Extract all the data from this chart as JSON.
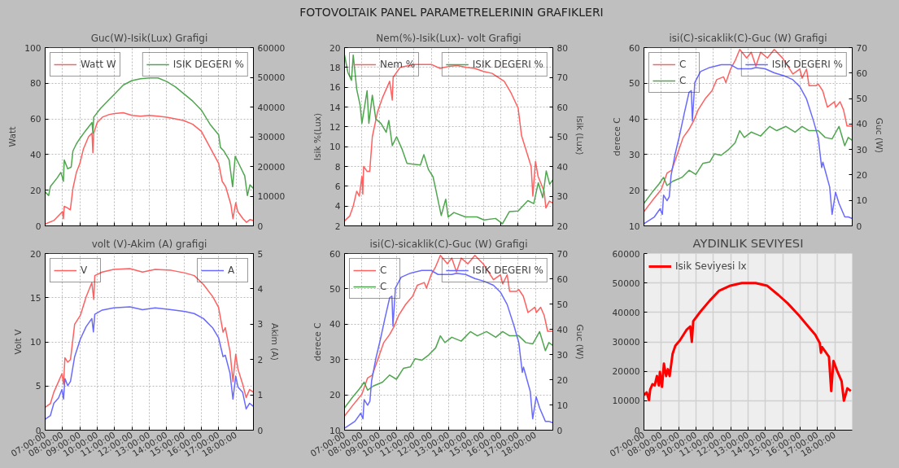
{
  "chart_data": [
    {
      "type": "line",
      "title": "Guc(W)-Isik(Lux) Grafigi",
      "ylabel": "Watt",
      "annotations": [
        "FOTOVOLTAIK PANEL PARAMETRELERININ GRAFIKLERI"
      ],
      "xlim": [
        7,
        19
      ],
      "xticks": [
        7,
        8,
        9,
        10,
        11,
        12,
        13,
        14,
        15,
        16,
        17,
        18
      ],
      "ylim": [
        0,
        100
      ],
      "yticks": [
        0,
        20,
        40,
        60,
        80,
        100
      ],
      "y2lim": [
        0,
        60000
      ],
      "y2ticks": [
        0,
        10000,
        20000,
        30000,
        40000,
        50000,
        60000
      ],
      "grid": true,
      "legend": "top",
      "tick_labels": "y",
      "line_style": "solid",
      "series": [
        {
          "name": "Watt W",
          "color": "#ff6060",
          "x": [
            7.0,
            7.5,
            8.0,
            8.05,
            8.1,
            8.3,
            8.45,
            8.6,
            8.8,
            9.0,
            9.2,
            9.5,
            9.7,
            9.75,
            9.8,
            10.0,
            10.3,
            10.7,
            11.0,
            11.5,
            12.0,
            12.5,
            13.0,
            13.5,
            14.0,
            14.5,
            15.0,
            15.5,
            16.0,
            16.5,
            17.0,
            17.2,
            17.4,
            17.7,
            17.82,
            17.98,
            18.1,
            18.4,
            18.6,
            18.8,
            19.0
          ],
          "values": [
            1,
            3,
            8,
            4,
            11,
            10,
            9,
            21,
            30,
            35,
            43,
            50,
            52,
            41,
            52,
            58,
            61,
            62.5,
            63,
            63.5,
            62,
            61.5,
            62,
            61.5,
            61,
            60,
            59,
            57,
            53,
            44,
            35,
            25,
            22,
            12,
            4,
            13,
            8,
            4,
            2,
            3.5,
            3
          ]
        },
        {
          "name": "ISIK DEGERI %",
          "color": "#4fa64f",
          "axis": "y2",
          "x": [
            7.0,
            7.2,
            7.3,
            7.7,
            7.9,
            8.0,
            8.05,
            8.1,
            8.3,
            8.5,
            8.6,
            8.8,
            9.0,
            9.3,
            9.7,
            9.75,
            9.8,
            10.2,
            10.7,
            11.0,
            11.5,
            12.0,
            12.5,
            13.0,
            13.5,
            14.0,
            14.5,
            15.0,
            15.5,
            16.0,
            16.5,
            17.0,
            17.1,
            17.3,
            17.6,
            17.8,
            17.95,
            18.2,
            18.5,
            18.65,
            18.8,
            19.0
          ],
          "values": [
            11400,
            10200,
            13200,
            16200,
            18000,
            16200,
            15000,
            22200,
            19200,
            19800,
            25200,
            27600,
            29400,
            31800,
            34800,
            31200,
            36600,
            39600,
            42600,
            44400,
            47400,
            48900,
            49500,
            49800,
            49800,
            48600,
            46800,
            44400,
            42000,
            39000,
            34200,
            30600,
            26400,
            25200,
            22200,
            13200,
            23400,
            20400,
            16800,
            10200,
            13800,
            12600
          ]
        }
      ]
    },
    {
      "type": "line",
      "title": "Nem(%)-Isik(Lux)- volt Grafigi",
      "ylabel": "Isik %(Lux)",
      "y2label": "Isik  (Lux)",
      "xlim": [
        7,
        19
      ],
      "xticks": [
        7,
        8,
        9,
        10,
        11,
        12,
        13,
        14,
        15,
        16,
        17,
        18
      ],
      "ylim": [
        2,
        20
      ],
      "yticks": [
        2,
        4,
        6,
        8,
        10,
        12,
        14,
        16,
        18,
        20
      ],
      "y2lim": [
        20,
        80
      ],
      "y2ticks": [
        20,
        30,
        40,
        50,
        60,
        70,
        80
      ],
      "grid": true,
      "legend": "top",
      "tick_labels": "y",
      "line_style": "solid",
      "series": [
        {
          "name": "Nem %",
          "color": "#ff6060",
          "x": [
            7.0,
            7.3,
            7.5,
            7.7,
            7.85,
            8.0,
            8.05,
            8.1,
            8.3,
            8.45,
            8.6,
            8.9,
            9.2,
            9.6,
            9.75,
            9.8,
            10.2,
            11.0,
            12.0,
            12.5,
            13.0,
            13.5,
            14.0,
            14.5,
            15.0,
            15.5,
            16.2,
            16.6,
            17.0,
            17.2,
            17.75,
            17.85,
            18.0,
            18.15,
            18.5,
            18.6,
            18.8,
            19.0
          ],
          "values": [
            2.5,
            3,
            4,
            5.5,
            5,
            7,
            5.2,
            8,
            7.5,
            7.5,
            11,
            13.5,
            15,
            16.6,
            14.7,
            17,
            18,
            18.3,
            18.3,
            17.9,
            18.1,
            18.2,
            18,
            17.9,
            17.6,
            17.4,
            16.6,
            15.4,
            13.9,
            11.1,
            8,
            5,
            8.5,
            7,
            5.5,
            3.8,
            4.5,
            4.3
          ]
        },
        {
          "name": "ISIK DEGERI %",
          "color": "#4fa64f",
          "axis": "y2",
          "x": [
            7.0,
            7.2,
            7.4,
            7.5,
            7.7,
            7.9,
            8.0,
            8.3,
            8.4,
            8.6,
            8.8,
            9.1,
            9.4,
            9.55,
            9.75,
            10.0,
            10.3,
            10.6,
            11.37,
            11.57,
            11.83,
            12.1,
            12.23,
            12.57,
            12.83,
            12.97,
            13.3,
            13.96,
            14.63,
            15.03,
            15.7,
            16.1,
            16.5,
            17.0,
            17.56,
            17.9,
            18.16,
            18.42,
            18.62,
            18.82,
            19.0
          ],
          "values": [
            77.5,
            71.5,
            69,
            77.5,
            66,
            60.5,
            54.5,
            65.5,
            54.5,
            64,
            56,
            54.5,
            51.5,
            55.5,
            47,
            50,
            46,
            41,
            40.5,
            44,
            39,
            36.5,
            33,
            23.5,
            29,
            23,
            24.5,
            23,
            23,
            22,
            22.5,
            20.7,
            24.8,
            25,
            28.5,
            27.5,
            34.5,
            29.5,
            38.5,
            34,
            35.5
          ]
        }
      ]
    },
    {
      "type": "line",
      "title": "isi(C)-sicaklik(C)-Guc (W) Grafigi",
      "ylabel": "derece C",
      "y2label": "Guc  (W)",
      "xlim": [
        7,
        19
      ],
      "xticks": [
        7,
        8,
        9,
        10,
        11,
        12,
        13,
        14,
        15,
        16,
        17,
        18
      ],
      "ylim": [
        10,
        60
      ],
      "yticks": [
        10,
        20,
        30,
        40,
        50,
        60
      ],
      "y2lim": [
        0,
        70
      ],
      "y2ticks": [
        0,
        10,
        20,
        30,
        40,
        50,
        60,
        70
      ],
      "grid": true,
      "legend": "top",
      "tick_labels": "y",
      "line_style": "solid",
      "series": [
        {
          "name": "C",
          "color": "#ff6060",
          "x": [
            7.0,
            7.47,
            8.0,
            8.33,
            8.6,
            8.93,
            9.26,
            9.6,
            9.86,
            10.12,
            10.52,
            10.92,
            11.19,
            11.59,
            11.72,
            11.99,
            12.25,
            12.52,
            12.92,
            13.18,
            13.45,
            13.72,
            14.11,
            14.51,
            15.0,
            15.58,
            15.98,
            16.11,
            16.37,
            16.51,
            16.91,
            17.04,
            17.3,
            17.57,
            17.97,
            18.05,
            18.3,
            18.5,
            18.7,
            19.0
          ],
          "values": [
            14,
            17,
            20.2,
            24.8,
            25.6,
            30.2,
            34.8,
            37.1,
            39.4,
            42.5,
            45.6,
            47.9,
            51,
            51.8,
            50.2,
            54,
            56.3,
            59.5,
            57.1,
            58.7,
            54.8,
            58.7,
            57.1,
            59.5,
            57,
            52.6,
            54,
            51.4,
            54,
            49.3,
            49.3,
            49.8,
            47.9,
            43.3,
            44.8,
            43.3,
            44.8,
            42.5,
            38,
            38
          ]
        },
        {
          "name": "C",
          "color": "#4fa64f",
          "x": [
            7.0,
            7.47,
            7.86,
            8.13,
            8.33,
            8.66,
            9.19,
            9.6,
            9.99,
            10.39,
            10.79,
            11.06,
            11.45,
            11.85,
            12.25,
            12.52,
            12.78,
            13.18,
            13.72,
            14.25,
            14.65,
            15.18,
            15.71,
            16.11,
            16.51,
            17.04,
            17.44,
            17.84,
            18.24,
            18.57,
            18.77,
            19.0
          ],
          "values": [
            16.3,
            19.4,
            21.7,
            23.6,
            21.3,
            22.5,
            23.6,
            25.6,
            24.4,
            27.5,
            27.9,
            30.2,
            29.8,
            31.3,
            33.3,
            36.7,
            34.8,
            36.3,
            35.2,
            37.9,
            36.7,
            37.9,
            36.3,
            37.9,
            36.7,
            36.7,
            34.8,
            34.4,
            37.9,
            32.5,
            34.8,
            34
          ]
        },
        {
          "name": "ISIK DEGERI %",
          "color": "#6a6aff",
          "axis": "y2",
          "x": [
            7.0,
            7.6,
            7.93,
            8.06,
            8.13,
            8.33,
            8.46,
            8.56,
            8.8,
            9.06,
            9.33,
            9.6,
            9.73,
            9.79,
            9.93,
            10.26,
            10.79,
            11.45,
            11.99,
            12.39,
            13.18,
            13.45,
            13.98,
            14.51,
            15.05,
            15.58,
            15.98,
            16.37,
            16.77,
            17.04,
            17.24,
            17.31,
            17.7,
            17.84,
            18.04,
            18.24,
            18.57,
            18.77,
            19.0
          ],
          "values": [
            0.8,
            3.5,
            6.7,
            4.5,
            12.1,
            9.9,
            11.5,
            19.6,
            28.3,
            35.8,
            44.4,
            52.5,
            53.1,
            41.2,
            56.3,
            60.6,
            62.2,
            63.3,
            63.3,
            61.7,
            61.7,
            62.2,
            61.7,
            60.1,
            59,
            57.4,
            54.7,
            49.8,
            41.2,
            34.7,
            22.9,
            25,
            15.3,
            4.5,
            13.2,
            8.8,
            3.5,
            3.5,
            2.9
          ]
        }
      ]
    },
    {
      "type": "line",
      "title": "volt (V)-Akim (A) grafigi",
      "ylabel": "Volt V",
      "y2label": "Akim (A)",
      "xlim": [
        7,
        19
      ],
      "xticks": [
        {
          "value": 7,
          "label": "07:00:00"
        },
        {
          "value": 8,
          "label": "08:00:00"
        },
        {
          "value": 9,
          "label": "09:00:00"
        },
        {
          "value": 10,
          "label": "10:00:00"
        },
        {
          "value": 11,
          "label": "11:00:00"
        },
        {
          "value": 12,
          "label": "12:00:00"
        },
        {
          "value": 13,
          "label": "13:00:00"
        },
        {
          "value": 14,
          "label": "14:00:00"
        },
        {
          "value": 15,
          "label": "15:00:00"
        },
        {
          "value": 16,
          "label": "16:00:00"
        },
        {
          "value": 17,
          "label": "17:00:00"
        },
        {
          "value": 18,
          "label": "18:00:00"
        }
      ],
      "ylim": [
        0,
        20
      ],
      "yticks": [
        0,
        5,
        10,
        15,
        20
      ],
      "y2lim": [
        0,
        5
      ],
      "y2ticks": [
        0,
        1,
        2,
        3,
        4,
        5
      ],
      "grid": true,
      "legend": "top",
      "line_style": "solid",
      "series": [
        {
          "name": "V",
          "color": "#ff6060",
          "x": [
            7.0,
            7.3,
            7.5,
            7.77,
            7.97,
            8.06,
            8.14,
            8.3,
            8.46,
            8.7,
            9.03,
            9.36,
            9.69,
            9.8,
            9.86,
            10.29,
            10.95,
            11.88,
            12.61,
            13.34,
            14.27,
            15.06,
            15.59,
            16.12,
            16.66,
            16.99,
            17.25,
            17.38,
            17.65,
            17.82,
            17.98,
            18.11,
            18.38,
            18.58,
            18.78,
            19.0
          ],
          "values": [
            2.6,
            3.0,
            4.3,
            5.5,
            6.4,
            5.2,
            8.2,
            7.7,
            8.0,
            12.0,
            13,
            15.1,
            16.7,
            14.8,
            17.5,
            17.9,
            18.2,
            18.3,
            17.9,
            18.2,
            18.1,
            17.8,
            17.5,
            16.5,
            15.1,
            13.9,
            11.1,
            11.6,
            8.9,
            5.5,
            8.6,
            6.9,
            5.2,
            3.7,
            4.6,
            4.3
          ]
        },
        {
          "name": "A",
          "color": "#6a6aff",
          "axis": "y2",
          "x": [
            7.0,
            7.3,
            7.5,
            7.77,
            7.97,
            8.06,
            8.14,
            8.3,
            8.46,
            8.7,
            9.03,
            9.36,
            9.69,
            9.78,
            9.86,
            10.29,
            10.95,
            11.88,
            12.61,
            13.34,
            14.27,
            15.06,
            15.59,
            16.12,
            16.66,
            16.99,
            17.25,
            17.38,
            17.65,
            17.82,
            17.98,
            18.11,
            18.38,
            18.58,
            18.78,
            19.0
          ],
          "values": [
            0.31,
            0.41,
            0.76,
            0.91,
            1.15,
            0.88,
            1.46,
            1.26,
            1.38,
            2.08,
            2.58,
            2.93,
            3.16,
            2.78,
            3.28,
            3.4,
            3.46,
            3.49,
            3.41,
            3.46,
            3.41,
            3.36,
            3.3,
            3.16,
            2.89,
            2.62,
            2.08,
            2.12,
            1.61,
            0.88,
            1.53,
            1.22,
            1.07,
            0.6,
            0.76,
            0.67
          ]
        }
      ]
    },
    {
      "type": "line",
      "title": "isi(C)-sicaklik(C)-Guc (W) Grafigi",
      "ylabel": "derece C",
      "y2label": "Guc (W)",
      "xlim": [
        7,
        19
      ],
      "xticks": [
        {
          "value": 7,
          "label": "07:00:00"
        },
        {
          "value": 8,
          "label": "08:00:00"
        },
        {
          "value": 9,
          "label": "09:00:00"
        },
        {
          "value": 10,
          "label": "10:00:00"
        },
        {
          "value": 11,
          "label": "11:00:00"
        },
        {
          "value": 12,
          "label": "12:00:00"
        },
        {
          "value": 13,
          "label": "13:00:00"
        },
        {
          "value": 14,
          "label": "14:00:00"
        },
        {
          "value": 15,
          "label": "15:00:00"
        },
        {
          "value": 16,
          "label": "16:00:00"
        },
        {
          "value": 17,
          "label": "17:00:00"
        },
        {
          "value": 18,
          "label": "18:00:00"
        }
      ],
      "ylim": [
        10,
        60
      ],
      "yticks": [
        10,
        20,
        30,
        40,
        50,
        60
      ],
      "y2lim": [
        0,
        70
      ],
      "y2ticks": [
        0,
        10,
        20,
        30,
        40,
        50,
        60,
        70
      ],
      "grid": true,
      "legend": "top",
      "line_style": "solid",
      "series": [
        {
          "name": "C",
          "color": "#ff6060",
          "x": [
            7.0,
            7.47,
            8.0,
            8.33,
            8.6,
            8.93,
            9.26,
            9.6,
            9.86,
            10.12,
            10.52,
            10.92,
            11.19,
            11.59,
            11.72,
            11.99,
            12.25,
            12.52,
            12.92,
            13.18,
            13.45,
            13.72,
            14.11,
            14.51,
            15.0,
            15.58,
            15.98,
            16.11,
            16.37,
            16.51,
            16.91,
            17.04,
            17.3,
            17.57,
            17.97,
            18.05,
            18.3,
            18.5,
            18.7,
            19.0
          ],
          "values": [
            14,
            17,
            20.2,
            24.8,
            25.6,
            30.2,
            34.8,
            37.1,
            39.4,
            42.5,
            45.6,
            47.9,
            51,
            51.8,
            50.2,
            54,
            56.3,
            59.5,
            57.1,
            58.7,
            54.8,
            58.7,
            57.1,
            59.5,
            57,
            52.6,
            54,
            51.4,
            54,
            49.3,
            49.3,
            49.8,
            47.9,
            43.3,
            44.8,
            43.3,
            44.8,
            42.5,
            38,
            38
          ]
        },
        {
          "name": "C",
          "color": "#4fa64f",
          "x": [
            7.0,
            7.47,
            7.86,
            8.13,
            8.33,
            8.66,
            9.19,
            9.6,
            9.99,
            10.39,
            10.79,
            11.06,
            11.45,
            11.85,
            12.25,
            12.52,
            12.78,
            13.18,
            13.72,
            14.25,
            14.65,
            15.18,
            15.71,
            16.11,
            16.51,
            17.04,
            17.44,
            17.84,
            18.24,
            18.57,
            18.77,
            19.0
          ],
          "values": [
            16.3,
            19.4,
            21.7,
            23.6,
            21.3,
            22.5,
            23.6,
            25.6,
            24.4,
            27.5,
            27.9,
            30.2,
            29.8,
            31.3,
            33.3,
            36.7,
            34.8,
            36.3,
            35.2,
            37.9,
            36.7,
            37.9,
            36.3,
            37.9,
            36.7,
            36.7,
            34.8,
            34.4,
            37.9,
            32.5,
            34.8,
            34
          ]
        },
        {
          "name": "ISIK DEGERI %",
          "color": "#6a6aff",
          "axis": "y2",
          "x": [
            7.0,
            7.6,
            7.93,
            8.06,
            8.13,
            8.33,
            8.46,
            8.56,
            8.8,
            9.06,
            9.33,
            9.6,
            9.73,
            9.79,
            9.93,
            10.26,
            10.79,
            11.45,
            11.99,
            12.39,
            13.18,
            13.45,
            13.98,
            14.51,
            15.05,
            15.58,
            15.98,
            16.37,
            16.77,
            17.04,
            17.24,
            17.31,
            17.7,
            17.84,
            18.04,
            18.24,
            18.57,
            18.77,
            19.0
          ],
          "values": [
            0.8,
            3.5,
            6.7,
            4.5,
            12.1,
            9.9,
            11.5,
            19.6,
            28.3,
            35.8,
            44.4,
            52.5,
            53.1,
            41.2,
            56.3,
            60.6,
            62.2,
            63.3,
            63.3,
            61.7,
            61.7,
            62.2,
            61.7,
            60.1,
            59,
            57.4,
            54.7,
            49.8,
            41.2,
            34.7,
            22.9,
            25,
            15.3,
            4.5,
            13.2,
            8.8,
            3.5,
            3.5,
            2.9
          ]
        }
      ]
    },
    {
      "type": "line",
      "title": "AYDINLIK SEVIYESI",
      "xlim": [
        7,
        19
      ],
      "xticks": [
        {
          "value": 7,
          "label": "07:00:00"
        },
        {
          "value": 8,
          "label": "08:00:00"
        },
        {
          "value": 9,
          "label": "09:00:00"
        },
        {
          "value": 10,
          "label": "10:00:00"
        },
        {
          "value": 11,
          "label": "11:00:00"
        },
        {
          "value": 12,
          "label": "12:00:00"
        },
        {
          "value": 13,
          "label": "13:00:00"
        },
        {
          "value": 14,
          "label": "14:00:00"
        },
        {
          "value": 15,
          "label": "15:00:00"
        },
        {
          "value": 16,
          "label": "16:00:00"
        },
        {
          "value": 17,
          "label": "17:00:00"
        },
        {
          "value": 18,
          "label": "18:00:00"
        }
      ],
      "ylim": [
        0,
        60000
      ],
      "yticks": [
        0,
        10000,
        20000,
        30000,
        40000,
        50000,
        60000
      ],
      "grid": true,
      "legend": "top left",
      "line_style": "solid",
      "series": [
        {
          "name": "Isik Seviyesi lx",
          "color": "#ff0000",
          "x": [
            7.0,
            7.16,
            7.29,
            7.36,
            7.49,
            7.62,
            7.75,
            7.86,
            7.92,
            8.04,
            8.15,
            8.28,
            8.38,
            8.48,
            8.65,
            8.81,
            9.07,
            9.47,
            9.67,
            9.76,
            9.84,
            10.26,
            10.79,
            11.32,
            11.98,
            12.64,
            13.43,
            14.09,
            14.75,
            15.28,
            15.94,
            16.47,
            16.87,
            17.13,
            17.2,
            17.27,
            17.66,
            17.79,
            17.92,
            18.12,
            18.39,
            18.52,
            18.72,
            18.92
          ],
          "values": [
            11900,
            12800,
            10200,
            13800,
            15600,
            15200,
            18400,
            15200,
            19800,
            14700,
            22600,
            18400,
            20700,
            18400,
            25900,
            28700,
            30500,
            34200,
            35200,
            30000,
            37000,
            40300,
            44000,
            47300,
            49100,
            50000,
            50000,
            49100,
            45900,
            43100,
            38900,
            35200,
            32400,
            29600,
            26300,
            28200,
            24900,
            13300,
            23500,
            20300,
            16600,
            10000,
            14200,
            13300
          ]
        }
      ]
    }
  ]
}
